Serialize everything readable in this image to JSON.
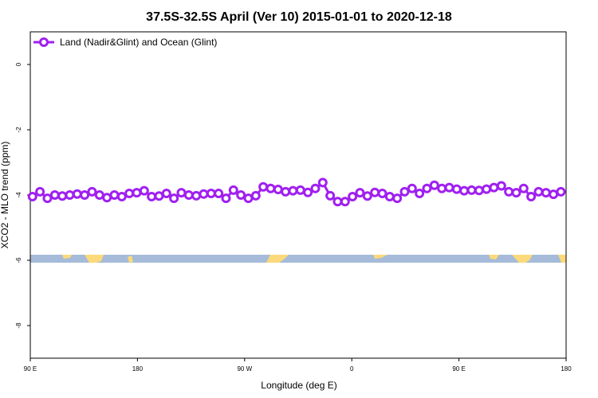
{
  "chart_data": {
    "type": "line",
    "title": "37.5S-32.5S April (Ver 10)   2015-01-01 to 2020-12-18",
    "xlabel": "Longitude (deg E)",
    "ylabel": "XCO2 - MLO trend (ppm)",
    "xlim": [
      90,
      450
    ],
    "ylim": [
      -9,
      1
    ],
    "x_ticks": [
      {
        "value": 90,
        "label": "90 E"
      },
      {
        "value": 162,
        "label": "180"
      },
      {
        "value": 234,
        "label": "90 W"
      },
      {
        "value": 306,
        "label": "0"
      },
      {
        "value": 378,
        "label": "90 E"
      },
      {
        "value": 450,
        "label": "180"
      }
    ],
    "y_ticks": [
      {
        "value": 0,
        "label": "0"
      },
      {
        "value": -2,
        "label": "-2"
      },
      {
        "value": -4,
        "label": "-4"
      },
      {
        "value": -6,
        "label": "-6"
      },
      {
        "value": -8,
        "label": "-8"
      }
    ],
    "legend_position": "top-left",
    "grid": false,
    "series": [
      {
        "name": "Land (Nadir&Glint) and Ocean (Glint)",
        "color": "#a020f0",
        "x": [
          91.5,
          96.5,
          101.5,
          106.5,
          111.5,
          116.5,
          121.5,
          126.5,
          131.5,
          136.5,
          141.5,
          146.5,
          151.5,
          156.5,
          161.5,
          166.5,
          171.5,
          176.5,
          181.5,
          186.5,
          191.5,
          196.5,
          201.5,
          206.5,
          211.5,
          216.5,
          221.5,
          226.5,
          231.5,
          236.5,
          241.5,
          246.5,
          251.5,
          256.5,
          261.5,
          266.5,
          271.5,
          276.5,
          281.5,
          286.5,
          291.5,
          296.5,
          301.5,
          306.5,
          311.5,
          316.5,
          321.5,
          326.5,
          331.5,
          336.5,
          341.5,
          346.5,
          351.5,
          356.5,
          361.5,
          366.5,
          371.5,
          376.5,
          381.5,
          386.5,
          391.5,
          396.5,
          401.5,
          406.5,
          411.5,
          416.5,
          421.5,
          426.5,
          431.5,
          436.5,
          441.5,
          446.5
        ],
        "values": [
          -4.05,
          -3.9,
          -4.1,
          -4.0,
          -4.03,
          -4.0,
          -3.97,
          -4.0,
          -3.9,
          -4.0,
          -4.08,
          -4.0,
          -4.05,
          -3.95,
          -3.93,
          -3.87,
          -4.05,
          -4.03,
          -3.95,
          -4.1,
          -3.93,
          -4.0,
          -4.02,
          -3.97,
          -3.95,
          -3.95,
          -4.1,
          -3.85,
          -4.0,
          -4.1,
          -4.02,
          -3.75,
          -3.8,
          -3.83,
          -3.9,
          -3.87,
          -3.85,
          -3.92,
          -3.8,
          -3.62,
          -4.02,
          -4.2,
          -4.2,
          -4.05,
          -3.93,
          -4.03,
          -3.92,
          -3.95,
          -4.05,
          -4.1,
          -3.9,
          -3.8,
          -3.95,
          -3.8,
          -3.7,
          -3.8,
          -3.77,
          -3.82,
          -3.87,
          -3.85,
          -3.86,
          -3.82,
          -3.77,
          -3.72,
          -3.9,
          -3.93,
          -3.8,
          -4.05,
          -3.9,
          -3.93,
          -3.98,
          -3.9
        ]
      }
    ]
  },
  "colors": {
    "ocean": "#a5bbd9",
    "land": "#fcd97a",
    "line": "#a020f0"
  }
}
